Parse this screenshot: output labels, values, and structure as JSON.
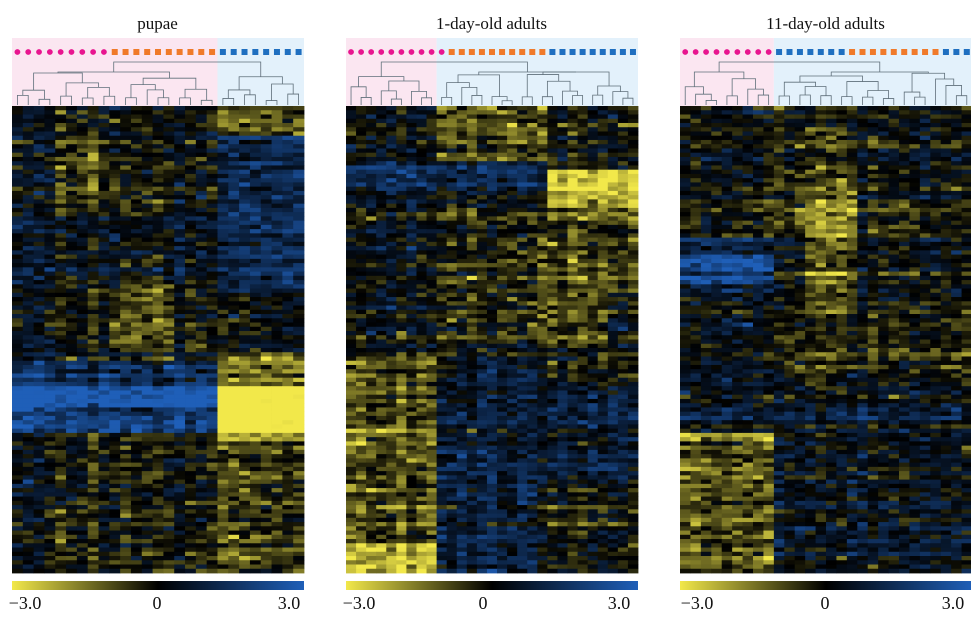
{
  "chart_data": [
    {
      "type": "heatmap",
      "title": "pupae",
      "colorbar": {
        "colors": [
          "#f2e84a",
          "#000000",
          "#1f5fb8"
        ],
        "ticks": [
          "−3.0",
          "0",
          "3.0"
        ],
        "range": [
          -3.0,
          3.0
        ]
      },
      "samples": [
        {
          "group": "A",
          "shape": "circle",
          "color": "#e8158f",
          "count": 9
        },
        {
          "group": "B",
          "shape": "square",
          "color": "#f07a2a",
          "count": 10
        },
        {
          "group": "C",
          "shape": "square",
          "color": "#1f6fc0",
          "count": 8
        }
      ],
      "clusters": [
        {
          "span": 19,
          "bg": "#fbe6f1"
        },
        {
          "span": 8,
          "bg": "#e3f1fb"
        }
      ],
      "blocks": [
        {
          "y0": 0.0,
          "y1": 0.06,
          "c0": 19,
          "c1": 27,
          "v": -1.2
        },
        {
          "y0": 0.06,
          "y1": 0.4,
          "c0": 19,
          "c1": 27,
          "v": 1.0
        },
        {
          "y0": 0.06,
          "y1": 0.24,
          "c0": 4,
          "c1": 10,
          "v": -0.6
        },
        {
          "y0": 0.24,
          "y1": 0.38,
          "c0": 0,
          "c1": 19,
          "v": 0.3
        },
        {
          "y0": 0.38,
          "y1": 0.53,
          "c0": 9,
          "c1": 15,
          "v": -0.8
        },
        {
          "y0": 0.55,
          "y1": 0.65,
          "c0": 0,
          "c1": 19,
          "v": 1.3
        },
        {
          "y0": 0.6,
          "y1": 0.7,
          "c0": 0,
          "c1": 19,
          "v": 2.0
        },
        {
          "y0": 0.53,
          "y1": 0.72,
          "c0": 19,
          "c1": 27,
          "v": -1.8
        },
        {
          "y0": 0.6,
          "y1": 0.7,
          "c0": 19,
          "c1": 27,
          "v": -2.6
        },
        {
          "y0": 0.72,
          "y1": 1.0,
          "c0": 19,
          "c1": 27,
          "v": -0.8
        }
      ]
    },
    {
      "type": "heatmap",
      "title": "1-day-old adults",
      "colorbar": {
        "colors": [
          "#f2e84a",
          "#000000",
          "#1f5fb8"
        ],
        "ticks": [
          "−3.0",
          "0",
          "3.0"
        ],
        "range": [
          -3.0,
          3.0
        ]
      },
      "samples": [
        {
          "group": "A",
          "shape": "circle",
          "color": "#e8158f",
          "count": 10
        },
        {
          "group": "B",
          "shape": "square",
          "color": "#f07a2a",
          "count": 10
        },
        {
          "group": "C",
          "shape": "square",
          "color": "#1f6fc0",
          "count": 9
        }
      ],
      "clusters": [
        {
          "span": 9,
          "bg": "#fbe6f1"
        },
        {
          "span": 20,
          "bg": "#e3f1fb"
        }
      ],
      "blocks": [
        {
          "y0": 0.0,
          "y1": 0.12,
          "c0": 9,
          "c1": 20,
          "v": -0.9
        },
        {
          "y0": 0.12,
          "y1": 0.18,
          "c0": 0,
          "c1": 20,
          "v": 1.3
        },
        {
          "y0": 0.14,
          "y1": 0.22,
          "c0": 20,
          "c1": 29,
          "v": -2.6
        },
        {
          "y0": 0.22,
          "y1": 0.4,
          "c0": 20,
          "c1": 29,
          "v": -0.8
        },
        {
          "y0": 0.25,
          "y1": 0.5,
          "c0": 9,
          "c1": 20,
          "v": -0.5
        },
        {
          "y0": 0.4,
          "y1": 0.52,
          "c0": 20,
          "c1": 26,
          "v": -1.0
        },
        {
          "y0": 0.54,
          "y1": 1.0,
          "c0": 0,
          "c1": 9,
          "v": -1.0
        },
        {
          "y0": 0.54,
          "y1": 1.0,
          "c0": 9,
          "c1": 20,
          "v": 0.9
        },
        {
          "y0": 0.6,
          "y1": 0.8,
          "c0": 20,
          "c1": 29,
          "v": 1.0
        },
        {
          "y0": 0.94,
          "y1": 1.0,
          "c0": 0,
          "c1": 9,
          "v": -1.6
        }
      ]
    },
    {
      "type": "heatmap",
      "title": "11-day-old adults",
      "colorbar": {
        "colors": [
          "#f2e84a",
          "#000000",
          "#1f5fb8"
        ],
        "ticks": [
          "−3.0",
          "0",
          "3.0"
        ],
        "range": [
          -3.0,
          3.0
        ]
      },
      "samples": [
        {
          "group": "A",
          "shape": "circle",
          "color": "#e8158f",
          "count": 9
        },
        {
          "group": "C",
          "shape": "square",
          "color": "#1f6fc0",
          "count": 7
        },
        {
          "group": "B",
          "shape": "square",
          "color": "#f07a2a",
          "count": 9
        },
        {
          "group": "C",
          "shape": "square",
          "color": "#1f6fc0",
          "count": 3
        }
      ],
      "clusters": [
        {
          "span": 9,
          "bg": "#fbe6f1"
        },
        {
          "span": 19,
          "bg": "#e3f1fb"
        }
      ],
      "blocks": [
        {
          "y0": 0.0,
          "y1": 0.26,
          "c0": 9,
          "c1": 10,
          "v": -1.0
        },
        {
          "y0": 0.05,
          "y1": 0.3,
          "c0": 11,
          "c1": 17,
          "v": -0.6
        },
        {
          "y0": 0.18,
          "y1": 0.45,
          "c0": 12,
          "c1": 17,
          "v": -1.0
        },
        {
          "y0": 0.28,
          "y1": 0.4,
          "c0": 0,
          "c1": 9,
          "v": 0.8
        },
        {
          "y0": 0.32,
          "y1": 0.38,
          "c0": 0,
          "c1": 9,
          "v": 1.5
        },
        {
          "y0": 0.45,
          "y1": 0.75,
          "c0": 0,
          "c1": 9,
          "v": 0.5
        },
        {
          "y0": 0.6,
          "y1": 1.0,
          "c0": 9,
          "c1": 28,
          "v": 0.6
        },
        {
          "y0": 0.7,
          "y1": 0.72,
          "c0": 0,
          "c1": 9,
          "v": -2.2
        },
        {
          "y0": 0.72,
          "y1": 1.0,
          "c0": 0,
          "c1": 9,
          "v": -0.9
        }
      ]
    }
  ]
}
